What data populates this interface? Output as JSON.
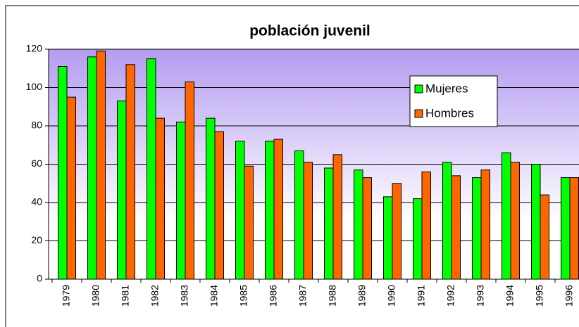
{
  "chart_data": {
    "type": "bar",
    "title": "población juvenil",
    "categories": [
      "1979",
      "1980",
      "1981",
      "1982",
      "1983",
      "1984",
      "1985",
      "1986",
      "1987",
      "1988",
      "1989",
      "1990",
      "1991",
      "1992",
      "1993",
      "1994",
      "1995",
      "1996"
    ],
    "series": [
      {
        "name": "Mujeres",
        "color": "#00ff00",
        "values": [
          111,
          116,
          93,
          115,
          82,
          84,
          72,
          72,
          67,
          58,
          57,
          43,
          42,
          61,
          53,
          66,
          60,
          53
        ]
      },
      {
        "name": "Hombres",
        "color": "#ff6600",
        "values": [
          95,
          119,
          112,
          84,
          103,
          77,
          59,
          73,
          61,
          65,
          53,
          50,
          56,
          54,
          57,
          61,
          44,
          53
        ]
      }
    ],
    "ylim": [
      0,
      120
    ],
    "yticks": [
      0,
      20,
      40,
      60,
      80,
      100,
      120
    ],
    "grid": true,
    "legend": "top-right"
  }
}
